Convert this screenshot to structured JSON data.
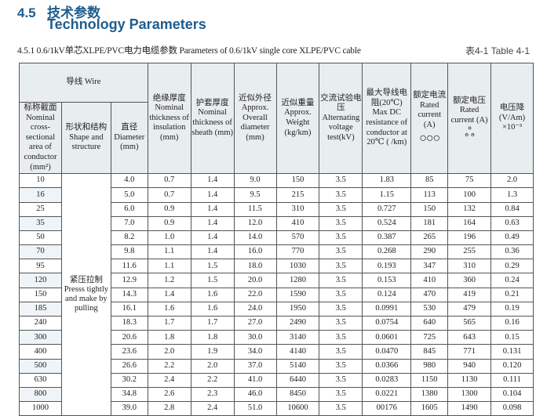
{
  "heading": {
    "number": "4.5",
    "title_cn": "技术参数",
    "title_en": "Technology Parameters"
  },
  "subtitle": "4.5.1 0.6/1kV单芯XLPE/PVC电力电缆参数  Parameters of 0.6/1kV single core XLPE/PVC cable",
  "table_no": "表4-1   Table 4-1",
  "header": {
    "wire": "导线  Wire",
    "cross_section": "标称截面 Nominal cross-sectional area of conductor (mm²)",
    "shape": "形状和结构 Shape and structure",
    "diameter": "直径 Diameter (mm)",
    "insulation": "绝缘厚度 Nominal thickness of insulation (mm)",
    "sheath": "护套厚度 Nominal thickness of sheath (mm)",
    "overall": "近似外径 Approx. Overall diameter (mm)",
    "weight": "近似重量 Approx. Weight (kg/km)",
    "voltage_test": "交流试验电压 Alternating voltage test(kV)",
    "resistance": "最大导线电阻(20℃) Max DC resistance of conductor at 20℃ (  /km)",
    "current_flat": "额定电流 Rated current (A)",
    "current_trefoil": "额定电压 Rated current (A)",
    "voltage_drop": "电压降 (V/Am) ×10⁻³",
    "flat_symbol": "○○○",
    "trefoil_symbol": "ஃ"
  },
  "shape_text": "紧压拉制 Presss tightly and make by pulling",
  "rows": [
    [
      "10",
      "4.0",
      "0.7",
      "1.4",
      "9.0",
      "150",
      "3.5",
      "1.83",
      "85",
      "75",
      "2.0"
    ],
    [
      "16",
      "5.0",
      "0.7",
      "1.4",
      "9.5",
      "215",
      "3.5",
      "1.15",
      "113",
      "100",
      "1.3"
    ],
    [
      "25",
      "6.0",
      "0.9",
      "1.4",
      "11.5",
      "310",
      "3.5",
      "0.727",
      "150",
      "132",
      "0.84"
    ],
    [
      "35",
      "7.0",
      "0.9",
      "1.4",
      "12.0",
      "410",
      "3.5",
      "0.524",
      "181",
      "164",
      "0.63"
    ],
    [
      "50",
      "8.2",
      "1.0",
      "1.4",
      "14.0",
      "570",
      "3.5",
      "0.387",
      "265",
      "196",
      "0.49"
    ],
    [
      "70",
      "9.8",
      "1.1",
      "1.4",
      "16.0",
      "770",
      "3.5",
      "0.268",
      "290",
      "255",
      "0.36"
    ],
    [
      "95",
      "11.6",
      "1.1",
      "1.5",
      "18.0",
      "1030",
      "3.5",
      "0.193",
      "347",
      "310",
      "0.29"
    ],
    [
      "120",
      "12.9",
      "1.2",
      "1.5",
      "20.0",
      "1280",
      "3.5",
      "0.153",
      "410",
      "360",
      "0.24"
    ],
    [
      "150",
      "14.3",
      "1.4",
      "1.6",
      "22.0",
      "1590",
      "3.5",
      "0.124",
      "470",
      "419",
      "0.21"
    ],
    [
      "185",
      "16.1",
      "1.6",
      "1.6",
      "24.0",
      "1950",
      "3.5",
      "0.0991",
      "530",
      "479",
      "0.19"
    ],
    [
      "240",
      "18.3",
      "1.7",
      "1.7",
      "27.0",
      "2490",
      "3.5",
      "0.0754",
      "640",
      "565",
      "0.16"
    ],
    [
      "300",
      "20.6",
      "1.8",
      "1.8",
      "30.0",
      "3140",
      "3.5",
      "0.0601",
      "725",
      "643",
      "0.15"
    ],
    [
      "400",
      "23.6",
      "2.0",
      "1.9",
      "34.0",
      "4140",
      "3.5",
      "0.0470",
      "845",
      "771",
      "0.131"
    ],
    [
      "500",
      "26.6",
      "2.2",
      "2.0",
      "37.0",
      "5140",
      "3.5",
      "0.0366",
      "980",
      "940",
      "0.120"
    ],
    [
      "630",
      "30.2",
      "2.4",
      "2.2",
      "41.0",
      "6440",
      "3.5",
      "0.0283",
      "1150",
      "1130",
      "0.111"
    ],
    [
      "800",
      "34.8",
      "2.6",
      "2.3",
      "46.0",
      "8450",
      "3.5",
      "0.0221",
      "1380",
      "1300",
      "0.104"
    ],
    [
      "1000",
      "39.0",
      "2.8",
      "2.4",
      "51.0",
      "10600",
      "3.5",
      "00176",
      "1605",
      "1490",
      "0.098"
    ]
  ],
  "colors": {
    "heading": "#1d5d8f",
    "header_bg": "#e8edef"
  }
}
